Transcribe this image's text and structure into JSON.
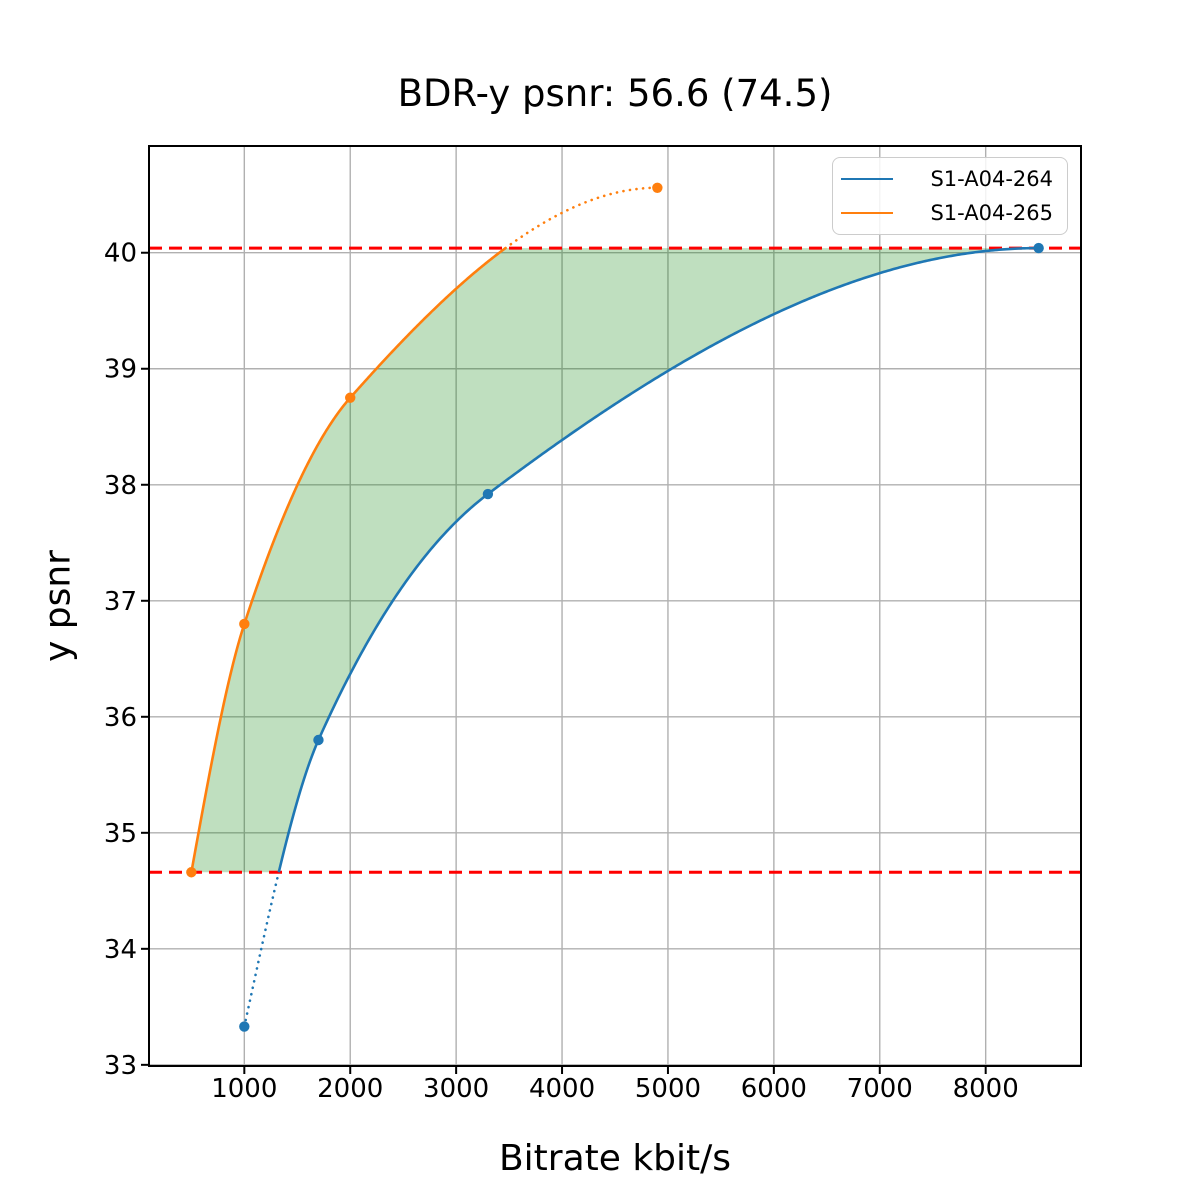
{
  "chart_data": {
    "type": "line",
    "title": "BDR-y psnr: 56.6 (74.5)",
    "xlabel": "Bitrate kbit/s",
    "ylabel": "y psnr",
    "xlim": [
      100,
      8900
    ],
    "ylim": [
      32.99,
      40.92
    ],
    "xticks": [
      1000,
      2000,
      3000,
      4000,
      5000,
      6000,
      7000,
      8000
    ],
    "yticks": [
      33,
      34,
      35,
      36,
      37,
      38,
      39,
      40
    ],
    "grid": true,
    "grid_color": "#b0b0b0",
    "axis_color": "#000000",
    "legend_position": "upper-right",
    "series": [
      {
        "name": "S1-A04-264",
        "color": "#1f77b4",
        "points": [
          [
            1000,
            33.33
          ],
          [
            1700,
            35.8
          ],
          [
            3300,
            37.92
          ],
          [
            8500,
            40.04
          ]
        ],
        "dotted_outside": "below"
      },
      {
        "name": "S1-A04-265",
        "color": "#ff7f0e",
        "points": [
          [
            500,
            34.66
          ],
          [
            1000,
            36.8
          ],
          [
            2000,
            38.75
          ],
          [
            4900,
            40.56
          ]
        ],
        "dotted_outside": "above"
      }
    ],
    "reference_lines": [
      {
        "y": 40.04,
        "color": "#ff0000",
        "style": "dashed"
      },
      {
        "y": 34.66,
        "color": "#ff0000",
        "style": "dashed"
      }
    ],
    "shaded_region": {
      "left_series": "S1-A04-265",
      "right_series": "S1-A04-264",
      "y_from": 34.66,
      "y_to": 40.04,
      "color": "#008000",
      "alpha": 0.25
    }
  }
}
